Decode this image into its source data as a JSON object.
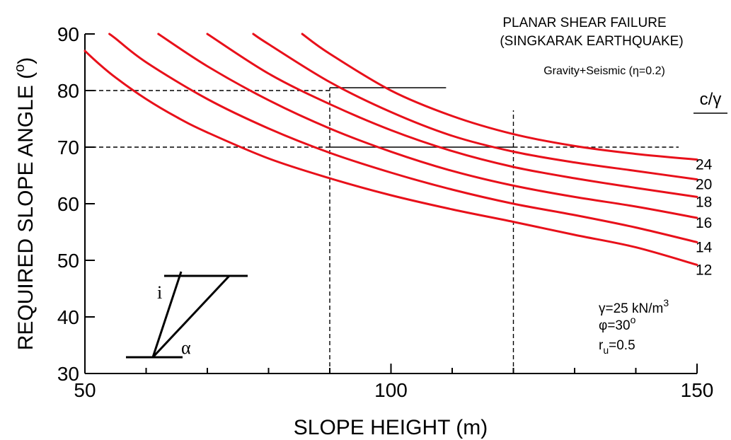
{
  "chart_data": {
    "type": "line",
    "title_lines": [
      "PLANAR SHEAR FAILURE",
      "(SINGKARAK EARTHQUAKE)"
    ],
    "subtitle": "Gravity+Seismic (η=0.2)",
    "xlabel": "SLOPE HEIGHT (m)",
    "ylabel": "REQUIRED SLOPE ANGLE (",
    "ylabel_unit": "o",
    "ylabel_close": ")",
    "xlim": [
      50,
      150
    ],
    "ylim": [
      30,
      90
    ],
    "x_ticks": [
      50,
      100,
      150
    ],
    "y_ticks": [
      30,
      40,
      50,
      60,
      70,
      80,
      90
    ],
    "legend_title": "c/γ",
    "line_color": "#e8101a",
    "params": {
      "gamma_prefix": "γ=25 kN/m",
      "gamma_sup": "3",
      "phi_prefix": "φ=30",
      "phi_sup": "o",
      "ru_prefix": "r",
      "ru_sub": "u",
      "ru_value": "=0.5"
    },
    "inset": {
      "label_i": "i",
      "label_alpha": "α"
    },
    "series": [
      {
        "name": "12",
        "x": [
          50,
          52,
          55,
          60,
          65,
          70,
          80,
          90,
          100,
          110,
          120,
          130,
          140,
          150
        ],
        "y": [
          87,
          85,
          82.3,
          78.5,
          75.3,
          72.6,
          68.0,
          64.5,
          61.5,
          59.0,
          56.8,
          54.5,
          52.3,
          49.2
        ]
      },
      {
        "name": "14",
        "x": [
          54,
          55,
          60,
          70,
          80,
          90,
          100,
          110,
          120,
          130,
          140,
          150
        ],
        "y": [
          90,
          89.2,
          85.0,
          78.5,
          73.3,
          69.0,
          65.5,
          62.5,
          60.0,
          58.0,
          55.8,
          53.2
        ]
      },
      {
        "name": "16",
        "x": [
          62,
          70,
          80,
          90,
          100,
          110,
          120,
          130,
          140,
          150
        ],
        "y": [
          90,
          84.3,
          78.3,
          73.3,
          69.2,
          65.8,
          63.2,
          61.2,
          59.5,
          57.5
        ]
      },
      {
        "name": "18",
        "x": [
          70,
          80,
          90,
          100,
          110,
          120,
          130,
          140,
          150
        ],
        "y": [
          90,
          83.0,
          77.6,
          73.0,
          69.3,
          66.5,
          64.5,
          62.8,
          61.2
        ]
      },
      {
        "name": "20",
        "x": [
          77.5,
          80,
          90,
          100,
          110,
          120,
          130,
          140,
          150
        ],
        "y": [
          90,
          88.2,
          81.5,
          76.2,
          72.0,
          69.2,
          67.3,
          65.8,
          64.3
        ]
      },
      {
        "name": "24",
        "x": [
          85.5,
          90,
          100,
          110,
          120,
          130,
          140,
          150
        ],
        "y": [
          90,
          86.5,
          80.0,
          75.5,
          72.3,
          70.2,
          68.8,
          67.8
        ]
      }
    ],
    "reference_lines": [
      {
        "kind": "horizontal",
        "y": 80,
        "x_from": 50,
        "x_to": 90,
        "style": "dashed"
      },
      {
        "kind": "horizontal",
        "y": 70,
        "x_from": 50,
        "x_to": 90,
        "style": "dashed"
      },
      {
        "kind": "horizontal",
        "y": 70,
        "x_from": 120,
        "x_to": 147,
        "style": "dashed"
      },
      {
        "kind": "vertical",
        "x": 90,
        "y_from": 30,
        "y_to": 80.5,
        "style": "dashed"
      },
      {
        "kind": "vertical",
        "x": 120,
        "y_from": 30,
        "y_to": 76.5,
        "style": "dashed"
      },
      {
        "kind": "horizontal",
        "y": 80.5,
        "x_from": 90,
        "x_to": 109,
        "style": "solid"
      },
      {
        "kind": "horizontal",
        "y": 70,
        "x_from": 90,
        "x_to": 120,
        "style": "solid"
      }
    ]
  }
}
